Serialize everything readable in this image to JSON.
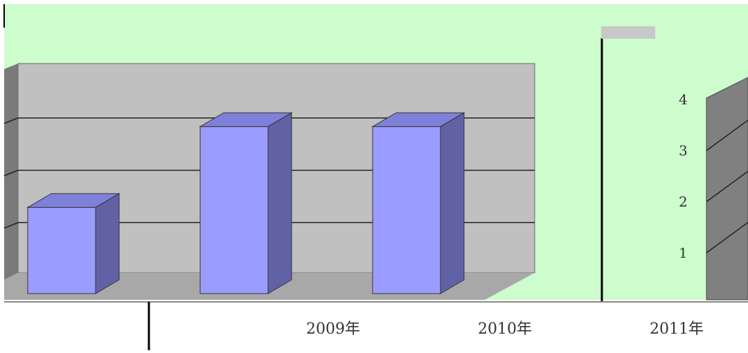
{
  "chart_data": {
    "type": "bar",
    "title": "",
    "categories": [
      "2009年",
      "2010年",
      "2011年"
    ],
    "values": [
      1.6,
      3.1,
      3.1
    ],
    "ylim": [
      0,
      4
    ],
    "y_ticks": [
      "1",
      "2",
      "3",
      "4"
    ],
    "grid": true,
    "legend": "none",
    "colors": {
      "bar_front": "#9b9cff",
      "bar_side": "#6162a6",
      "bar_top": "#7f80d9",
      "plot_bg": "#c0c0c0",
      "floor": "#a8a8a8",
      "page_bg": "#cdfccd",
      "right_panel": "#808080"
    }
  }
}
